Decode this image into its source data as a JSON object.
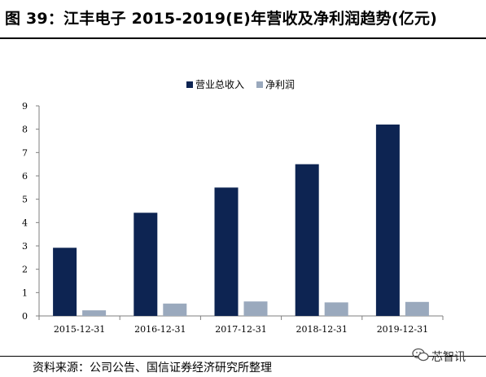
{
  "header": {
    "title": "图 39：江丰电子 2015-2019(E)年营收及净利润趋势(亿元)"
  },
  "chart_data": {
    "type": "bar",
    "categories": [
      "2015-12-31",
      "2016-12-31",
      "2017-12-31",
      "2018-12-31",
      "2019-12-31"
    ],
    "series": [
      {
        "name": "营业总收入",
        "values": [
          2.92,
          4.42,
          5.5,
          6.5,
          8.2
        ],
        "color": "#0d2452"
      },
      {
        "name": "净利润",
        "values": [
          0.24,
          0.53,
          0.62,
          0.58,
          0.6
        ],
        "color": "#9aa9bd"
      }
    ],
    "yticks": [
      "0",
      "1",
      "2",
      "3",
      "4",
      "5",
      "6",
      "7",
      "8",
      "9"
    ],
    "ylim": [
      0,
      9
    ],
    "grid": false,
    "legend_position": "top-center",
    "title": "",
    "xlabel": "",
    "ylabel": ""
  },
  "footer": {
    "source": "资料来源：公司公告、国信证券经济研究所整理",
    "watermark": "芯智讯"
  }
}
